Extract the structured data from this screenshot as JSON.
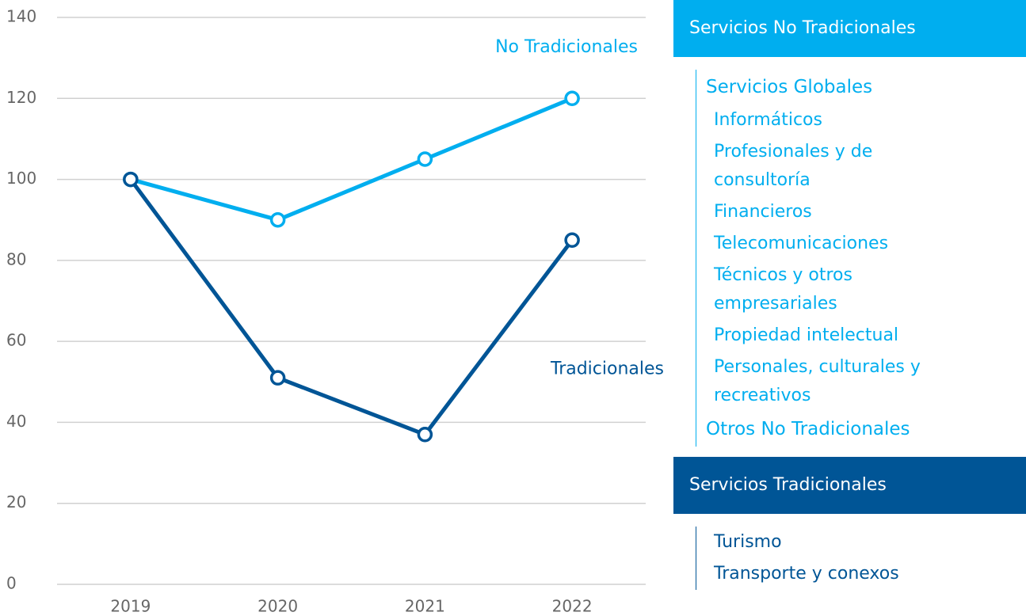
{
  "chart_data": {
    "type": "line",
    "categories": [
      "2019",
      "2020",
      "2021",
      "2022"
    ],
    "series": [
      {
        "name": "No Tradicionales",
        "color": "#00aeef",
        "values": [
          100,
          90,
          105,
          120
        ]
      },
      {
        "name": "Tradicionales",
        "color": "#005596",
        "values": [
          100,
          51,
          37,
          85
        ]
      }
    ],
    "ylim": [
      0,
      140
    ],
    "yticks": [
      0,
      20,
      40,
      60,
      80,
      100,
      120,
      140
    ],
    "grid": true
  },
  "panels": [
    {
      "title": "Servicios No Tradicionales",
      "color": "#00aeef",
      "groups": [
        {
          "name": "Servicios Globales",
          "items": [
            "Informáticos",
            "Profesionales y de consultoría",
            "Financieros",
            "Telecomunicaciones",
            "Técnicos y otros empresariales",
            "Propiedad intelectual",
            "Personales, culturales y recreativos"
          ]
        },
        {
          "name": "Otros No Tradicionales",
          "items": []
        }
      ]
    },
    {
      "title": "Servicios Tradicionales",
      "color": "#005596",
      "groups": [
        {
          "name": null,
          "items": [
            "Turismo",
            "Transporte y conexos"
          ]
        }
      ]
    }
  ]
}
